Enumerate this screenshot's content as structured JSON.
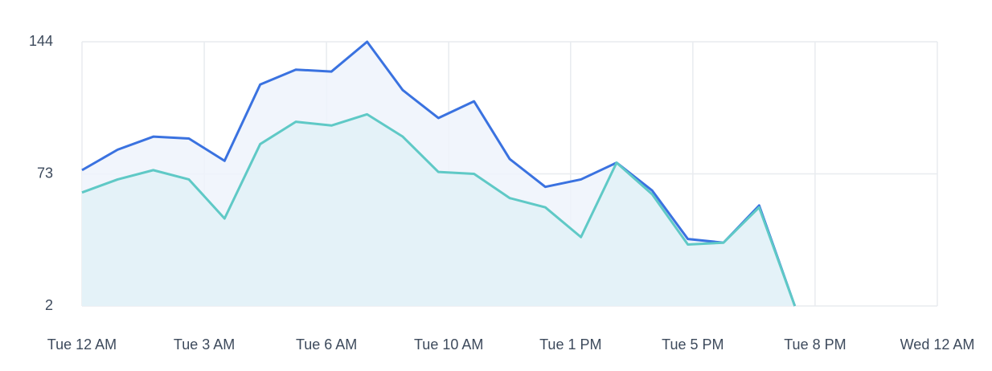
{
  "chart_data": {
    "type": "area",
    "x": [
      0,
      1,
      2,
      3,
      4,
      5,
      6,
      7,
      8,
      9,
      10,
      11,
      12,
      13,
      14,
      15,
      16,
      17,
      18,
      19,
      20
    ],
    "series": [
      {
        "color": "#3a72e0",
        "fill": "#eef3fc",
        "values": [
          75,
          86,
          93,
          92,
          80,
          121,
          129,
          128,
          144,
          118,
          103,
          112,
          81,
          66,
          70,
          79,
          64,
          38,
          36,
          56,
          2
        ]
      },
      {
        "color": "#5fc9c6",
        "fill": "#e2f1f7",
        "values": [
          63,
          70,
          75,
          70,
          49,
          89,
          101,
          99,
          105,
          93,
          74,
          73,
          60,
          55,
          39,
          79,
          62,
          35,
          36,
          55,
          2
        ]
      }
    ],
    "xlim": [
      0,
      24
    ],
    "xticks": [
      {
        "value": 0,
        "label": "Tue 12 AM"
      },
      {
        "value": 3.43,
        "label": "Tue 3 AM"
      },
      {
        "value": 6.86,
        "label": "Tue 6 AM"
      },
      {
        "value": 10.29,
        "label": "Tue 10 AM"
      },
      {
        "value": 13.71,
        "label": "Tue 1 PM"
      },
      {
        "value": 17.14,
        "label": "Tue 5 PM"
      },
      {
        "value": 20.57,
        "label": "Tue 8 PM"
      },
      {
        "value": 24,
        "label": "Wed 12 AM"
      }
    ],
    "ylim": [
      2,
      144
    ],
    "yticks": [
      2,
      73,
      144
    ],
    "grid": true
  }
}
